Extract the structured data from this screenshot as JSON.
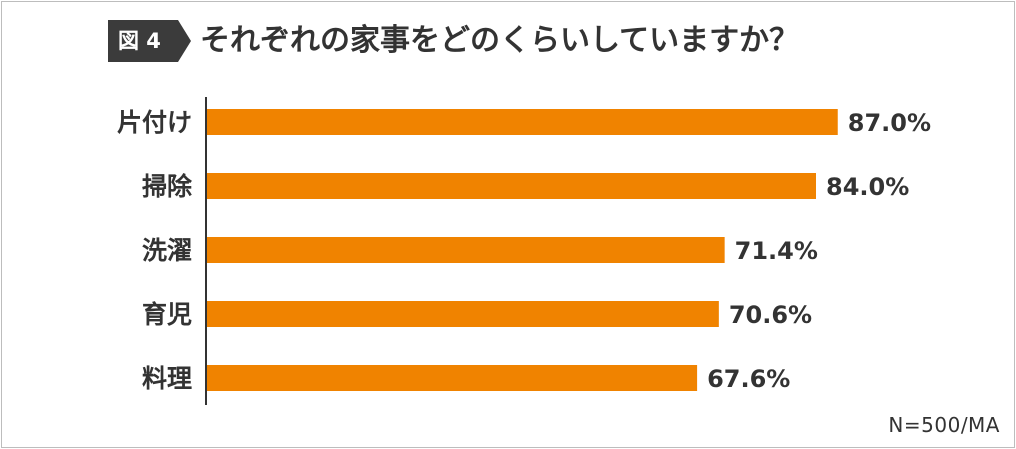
{
  "figure_label": "図 4",
  "title": "それぞれの家事をどのくらいしていますか？",
  "note": "N=500/MA",
  "colors": {
    "bar": "#f08300",
    "axis": "#333333",
    "text": "#333333",
    "badge": "#3b3b3b"
  },
  "chart_data": {
    "type": "bar",
    "orientation": "horizontal",
    "title": "それぞれの家事をどのくらいしていますか？",
    "categories": [
      "片付け",
      "掃除",
      "洗濯",
      "育児",
      "料理"
    ],
    "values": [
      87.0,
      84.0,
      71.4,
      70.6,
      67.6
    ],
    "value_labels": [
      "87.0%",
      "84.0%",
      "71.4%",
      "70.6%",
      "67.6%"
    ],
    "xlim": [
      0,
      100
    ],
    "xlabel": "",
    "ylabel": "",
    "grid": false,
    "legend": "none"
  }
}
